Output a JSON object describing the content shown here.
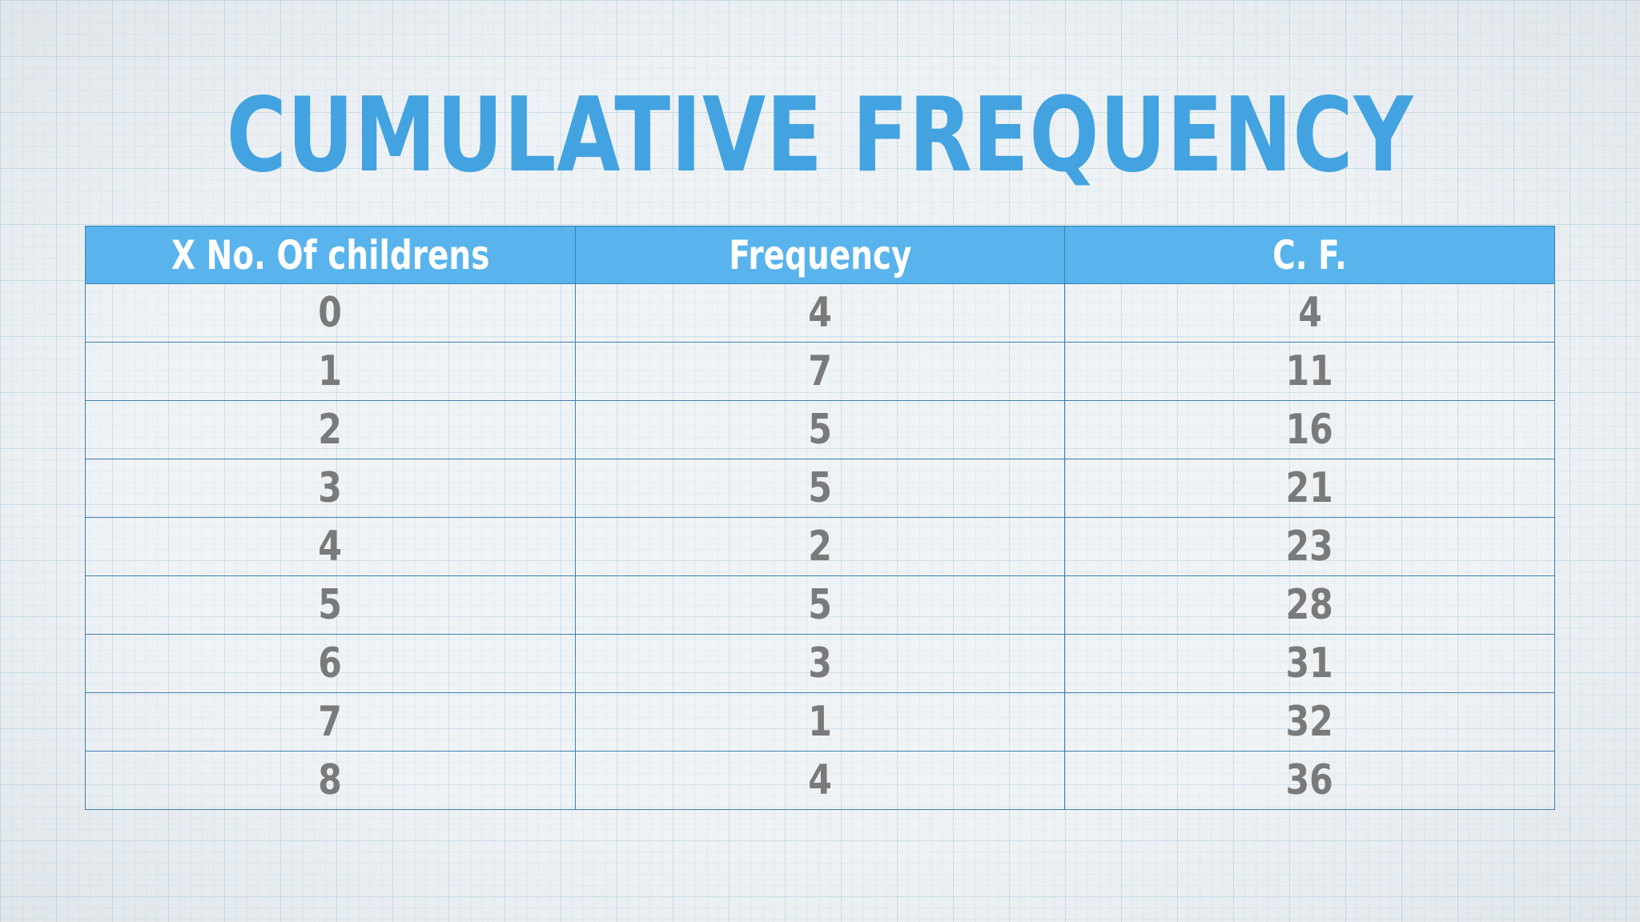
{
  "slide": {
    "title": "CUMULATIVE FREQUENCY"
  },
  "table": {
    "headers": [
      "X No. Of childrens",
      "Frequency",
      "C. F."
    ],
    "rows": [
      [
        "0",
        "4",
        "4"
      ],
      [
        "1",
        "7",
        "11"
      ],
      [
        "2",
        "5",
        "16"
      ],
      [
        "3",
        "5",
        "21"
      ],
      [
        "4",
        "2",
        "23"
      ],
      [
        "5",
        "5",
        "28"
      ],
      [
        "6",
        "3",
        "31"
      ],
      [
        "7",
        "1",
        "32"
      ],
      [
        "8",
        "4",
        "36"
      ]
    ]
  },
  "colors": {
    "title": "#43a3e0",
    "header_bg": "#59b3ec",
    "cell_text": "#7a7a7a",
    "grid_line": "#3f7fae"
  }
}
